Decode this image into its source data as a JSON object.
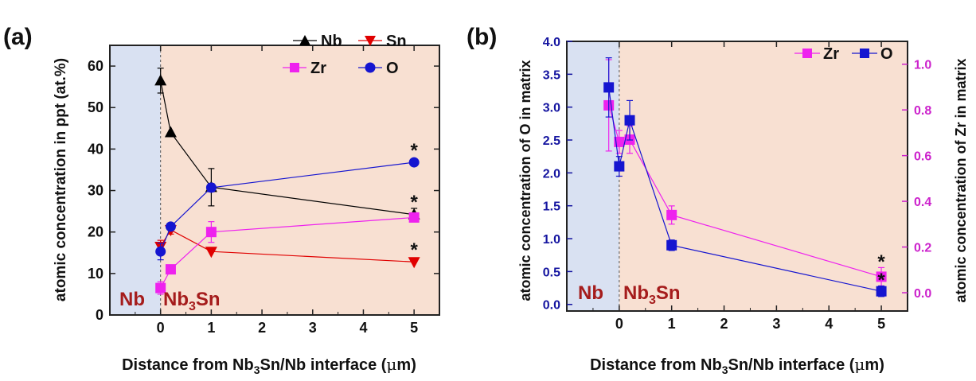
{
  "colors": {
    "nb_region": "#d9e1f2",
    "nb3sn_region": "#f8e0d2",
    "region_label": "#a51c1c",
    "Nb": "#000000",
    "Sn": "#e00000",
    "Zr": "#ee22ee",
    "O": "#1515d0",
    "left_axis_b": "#1515a0",
    "right_axis_b": "#cc22cc",
    "axis": "#222222"
  },
  "chart_data": [
    {
      "panel": "(a)",
      "type": "line",
      "ylabel": "atomic concentration in ppt (at.%)",
      "xlabel": "Distance from Nb3Sn/Nb interface (μm)",
      "xlim": [
        -1,
        5.5
      ],
      "ylim": [
        0,
        65
      ],
      "xticks": [
        0,
        1,
        2,
        3,
        4,
        5
      ],
      "yticks": [
        0,
        10,
        20,
        30,
        40,
        50,
        60
      ],
      "regions": [
        {
          "label": "Nb",
          "from": -1,
          "to": 0
        },
        {
          "label": "Nb3Sn",
          "from": 0,
          "to": 5.5
        }
      ],
      "legend": "top-right",
      "series": [
        {
          "name": "Nb",
          "marker": "triangle-up",
          "x": [
            0,
            0.2,
            1,
            5
          ],
          "y": [
            56.5,
            44,
            30.8,
            24.2
          ],
          "err": [
            3,
            0,
            4.5,
            1.5
          ]
        },
        {
          "name": "Sn",
          "marker": "triangle-down",
          "x": [
            0,
            0.2,
            1,
            5
          ],
          "y": [
            16.5,
            20.5,
            15.3,
            12.8
          ],
          "err": [
            1.5,
            1,
            0,
            0
          ]
        },
        {
          "name": "Zr",
          "marker": "square",
          "x": [
            0,
            0.2,
            1,
            5
          ],
          "y": [
            6.5,
            11,
            20,
            23.5
          ],
          "err": [
            1.5,
            0,
            2.5,
            1
          ]
        },
        {
          "name": "O",
          "marker": "circle",
          "x": [
            0,
            0.2,
            1,
            5
          ],
          "y": [
            15.3,
            21.3,
            30.7,
            36.8
          ],
          "err": [
            2,
            0,
            1,
            0
          ]
        }
      ],
      "annotations": [
        {
          "text": "*",
          "x": 5,
          "y": 40.5
        },
        {
          "text": "*",
          "x": 5,
          "y": 28
        },
        {
          "text": "*",
          "x": 5,
          "y": 16.5
        }
      ]
    },
    {
      "panel": "(b)",
      "type": "line",
      "ylabel": "atomic concentration of O in matrix",
      "y2label": "atomic concentration of Zr in matrix",
      "xlabel": "Distance from Nb3Sn/Nb interface (μm)",
      "xlim": [
        -1,
        5.5
      ],
      "ylim": [
        -0.1,
        4.0
      ],
      "y2lim": [
        -0.08,
        1.1
      ],
      "xticks": [
        0,
        1,
        2,
        3,
        4,
        5
      ],
      "yticks": [
        "0.0",
        "0.5",
        "1.0",
        "1.5",
        "2.0",
        "2.5",
        "3.0",
        "3.5",
        "4.0"
      ],
      "y2ticks": [
        "0.0",
        "0.2",
        "0.4",
        "0.6",
        "0.8",
        "1.0"
      ],
      "regions": [
        {
          "label": "Nb",
          "from": -1,
          "to": 0
        },
        {
          "label": "Nb3Sn",
          "from": 0,
          "to": 5.5
        }
      ],
      "legend": "top-right",
      "series": [
        {
          "name": "Zr",
          "axis": "right",
          "marker": "square",
          "x": [
            -0.2,
            0,
            0.2,
            1,
            5
          ],
          "y": [
            0.82,
            0.66,
            0.67,
            0.34,
            0.07
          ],
          "err": [
            0.2,
            0.05,
            0.06,
            0.04,
            0.04
          ]
        },
        {
          "name": "O",
          "axis": "left",
          "marker": "square",
          "x": [
            -0.2,
            0,
            0.2,
            1,
            5
          ],
          "y": [
            3.3,
            2.1,
            2.8,
            0.9,
            0.2
          ],
          "err": [
            0.45,
            0.15,
            0.3,
            0.08,
            0.08
          ]
        }
      ],
      "annotations": [
        {
          "text": "*",
          "x": 5,
          "y": 0.7
        },
        {
          "text": "*",
          "x": 5,
          "y": 0.42
        }
      ]
    }
  ],
  "panel_a": {
    "label": "(a)",
    "ylabel": "atomic concentration in ppt (at.%)",
    "xlabel_pre": "Distance from Nb",
    "xlabel_sub": "3",
    "xlabel_post": "Sn/Nb interface (",
    "xlabel_mu": "μ",
    "xlabel_end": "m)",
    "region_nb": "Nb",
    "region_nb3sn_pre": "Nb",
    "region_nb3sn_sub": "3",
    "region_nb3sn_post": "Sn",
    "star": "*"
  },
  "panel_b": {
    "label": "(b)",
    "ylabel": "atomic concentration of O in matrix",
    "y2label": "atomic concentration of Zr in matrix",
    "xlabel_pre": "Distance from Nb",
    "xlabel_sub": "3",
    "xlabel_post": "Sn/Nb interface (",
    "xlabel_mu": "μ",
    "xlabel_end": "m)",
    "region_nb": "Nb",
    "region_nb3sn_pre": "Nb",
    "region_nb3sn_sub": "3",
    "region_nb3sn_post": "Sn",
    "star": "*"
  }
}
